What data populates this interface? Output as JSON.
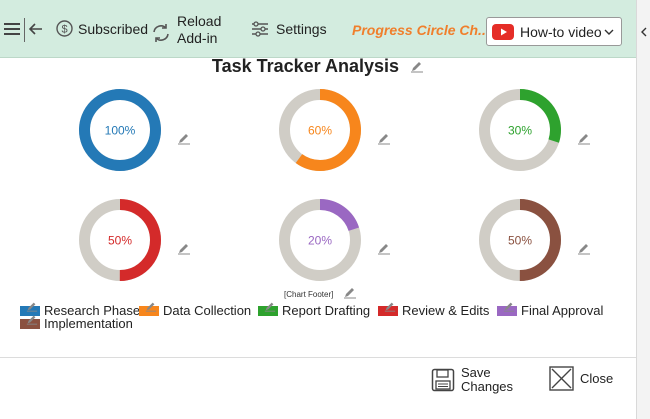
{
  "toolbar": {
    "subscribed_label": "Subscribed",
    "reload_line1": "Reload",
    "reload_line2": "Add-in",
    "settings_label": "Settings",
    "product_title": "Progress Circle Ch...",
    "howto_label": "How-to video"
  },
  "chart": {
    "title": "Task Tracker Analysis",
    "footer": "[Chart Footer]"
  },
  "chart_data": {
    "type": "progress-circle",
    "title": "Task Tracker Analysis",
    "track_color": "#d0cdc6",
    "series": [
      {
        "name": "Research Phase",
        "value": 100,
        "label": "100%",
        "color": "#2479b6"
      },
      {
        "name": "Data Collection",
        "value": 60,
        "label": "60%",
        "color": "#f7861c"
      },
      {
        "name": "Report Drafting",
        "value": 30,
        "label": "30%",
        "color": "#2ea22e"
      },
      {
        "name": "Review & Edits",
        "value": 50,
        "label": "50%",
        "color": "#d42a2a"
      },
      {
        "name": "Final Approval",
        "value": 20,
        "label": "20%",
        "color": "#9a68c2"
      },
      {
        "name": "Implementation",
        "value": 50,
        "label": "50%",
        "color": "#8a5140"
      }
    ]
  },
  "footer": {
    "save_line1": "Save",
    "save_line2": "Changes",
    "close_label": "Close"
  }
}
